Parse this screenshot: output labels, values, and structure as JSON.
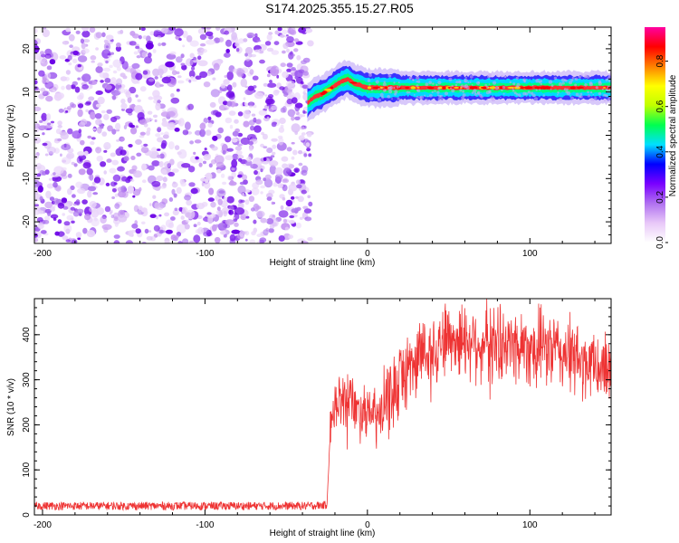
{
  "chart_data": [
    {
      "type": "heatmap",
      "title": "S174.2025.355.15.27.R05",
      "xlabel": "Height of straight line (km)",
      "ylabel": "Frequency (Hz)",
      "xlim": [
        -205,
        150
      ],
      "ylim": [
        -25,
        25
      ],
      "x_ticks": [
        -200,
        -100,
        0,
        100
      ],
      "x_tick_labels": [
        "-200",
        "-100",
        "0",
        "100"
      ],
      "y_ticks": [
        -20,
        -10,
        0,
        10,
        20
      ],
      "y_tick_labels": [
        "-20",
        "-10",
        "0",
        "10",
        "20"
      ],
      "noise_region_x": [
        -205,
        -35
      ],
      "signal_trace": {
        "x": [
          -37,
          -32,
          -28,
          -24,
          -20,
          -16,
          -12,
          -8,
          -4,
          0,
          4,
          10,
          20,
          40,
          60,
          80,
          100,
          120,
          150
        ],
        "frequency": [
          7.5,
          9,
          9.5,
          10.5,
          11.5,
          12.5,
          13,
          12,
          11.5,
          11,
          11,
          11,
          11,
          11,
          11,
          11,
          11,
          11,
          11
        ]
      },
      "colorbar": {
        "label": "Normalized spectral amplitude",
        "range": [
          0,
          0.95
        ],
        "ticks": [
          0.0,
          0.2,
          0.4,
          0.6,
          0.8
        ],
        "tick_labels": [
          "0.0",
          "0.2",
          "0.4",
          "0.6",
          "0.8"
        ],
        "colors": [
          "#ffffff",
          "#e8c8f8",
          "#b070f0",
          "#7a00ff",
          "#0000ff",
          "#00e0ff",
          "#00ff50",
          "#c0ff00",
          "#ffff00",
          "#ff8000",
          "#ff0000",
          "#ff00a0"
        ]
      }
    },
    {
      "type": "line",
      "title": "",
      "xlabel": "Height of straight line (km)",
      "ylabel": "SNR (10 * v/v)",
      "xlim": [
        -205,
        150
      ],
      "ylim": [
        0,
        480
      ],
      "x_ticks": [
        -200,
        -100,
        0,
        100
      ],
      "x_tick_labels": [
        "-200",
        "-100",
        "0",
        "100"
      ],
      "y_ticks": [
        0,
        100,
        200,
        300,
        400
      ],
      "y_tick_labels": [
        "0",
        "100",
        "200",
        "300",
        "400"
      ],
      "series": [
        {
          "name": "SNR",
          "color": "#ee3333",
          "x": [
            -205,
            -40,
            -25,
            -23,
            -20,
            -15,
            -10,
            -5,
            0,
            5,
            10,
            15,
            20,
            30,
            40,
            50,
            60,
            70,
            80,
            90,
            100,
            110,
            120,
            130,
            140,
            150
          ],
          "values": [
            20,
            20,
            22,
            170,
            240,
            250,
            260,
            235,
            240,
            210,
            230,
            270,
            300,
            350,
            375,
            395,
            390,
            385,
            380,
            378,
            375,
            370,
            360,
            340,
            330,
            325
          ]
        }
      ]
    }
  ]
}
